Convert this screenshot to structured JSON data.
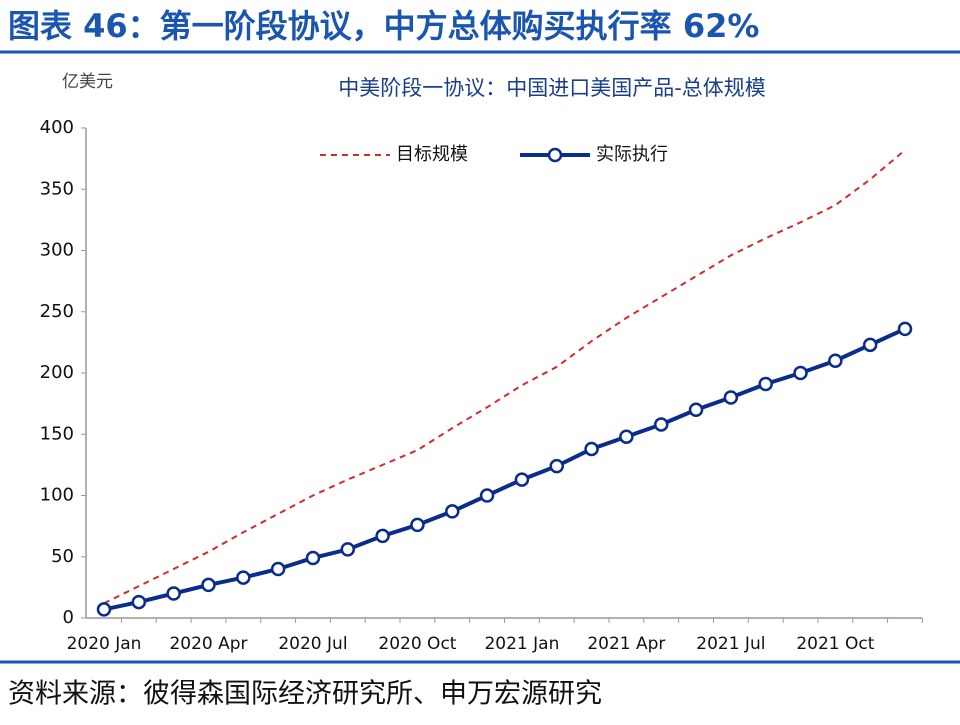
{
  "header": {
    "title": "图表 46：第一阶段协议，中方总体购买执行率 62%"
  },
  "footer": {
    "source": "资料来源：彼得森国际经济研究所、申万宏源研究"
  },
  "chart_data": {
    "type": "line",
    "title": "中美阶段一协议：中国进口美国产品-总体规模",
    "y_label": "亿美元",
    "categories": [
      "2020 Jan",
      null,
      null,
      "2020 Apr",
      null,
      null,
      "2020 Jul",
      null,
      null,
      "2020 Oct",
      null,
      null,
      "2021 Jan",
      null,
      null,
      "2021 Apr",
      null,
      null,
      "2021 Jul",
      null,
      null,
      "2021 Oct",
      null,
      null
    ],
    "series": [
      {
        "name": "目标规模",
        "color": "#d42a2a",
        "dashed": true,
        "markers": false,
        "values": [
          12,
          26,
          40,
          54,
          70,
          85,
          100,
          113,
          125,
          137,
          155,
          172,
          190,
          205,
          226,
          245,
          262,
          279,
          296,
          310,
          323,
          337,
          358,
          382
        ]
      },
      {
        "name": "实际执行",
        "color": "#0a2d8c",
        "dashed": false,
        "markers": true,
        "values": [
          7,
          13,
          20,
          27,
          33,
          40,
          49,
          56,
          67,
          76,
          87,
          100,
          113,
          124,
          138,
          148,
          158,
          170,
          180,
          191,
          200,
          210,
          223,
          236
        ]
      }
    ],
    "ylim": [
      0,
      400
    ],
    "yticks": [
      0,
      50,
      100,
      150,
      200,
      250,
      300,
      350,
      400
    ],
    "grid": false,
    "legend": "top"
  }
}
